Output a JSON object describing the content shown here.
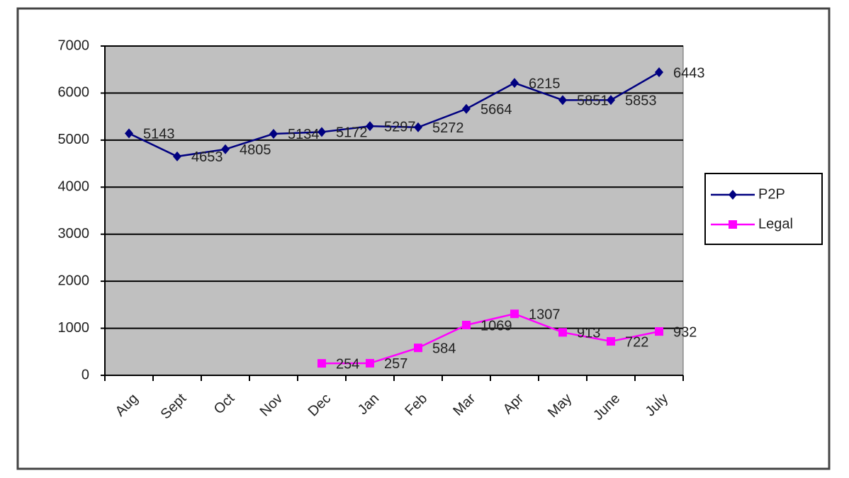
{
  "chart_data": {
    "type": "line",
    "categories": [
      "Aug",
      "Sept",
      "Oct",
      "Nov",
      "Dec",
      "Jan",
      "Feb",
      "Mar",
      "Apr",
      "May",
      "June",
      "July"
    ],
    "series": [
      {
        "name": "P2P",
        "color": "#000080",
        "marker": "diamond",
        "values": [
          5143,
          4653,
          4805,
          5134,
          5172,
          5297,
          5272,
          5664,
          6215,
          5851,
          5853,
          6443
        ]
      },
      {
        "name": "Legal",
        "color": "#ff00ff",
        "marker": "square",
        "values": [
          null,
          null,
          null,
          null,
          254,
          257,
          584,
          1069,
          1307,
          913,
          722,
          932
        ]
      }
    ],
    "ylim": [
      0,
      7000
    ],
    "yticks": [
      0,
      1000,
      2000,
      3000,
      4000,
      5000,
      6000,
      7000
    ],
    "grid": true,
    "legend": "right",
    "plot_background": "#c0c0c0"
  }
}
